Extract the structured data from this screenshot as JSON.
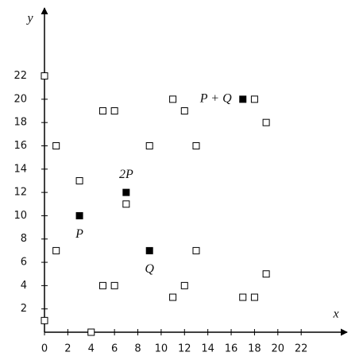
{
  "chart_data": {
    "type": "scatter",
    "x_label": "x",
    "y_label": "y",
    "xlim": [
      0,
      25.8
    ],
    "ylim": [
      0,
      27.7
    ],
    "xticks": [
      0,
      2,
      4,
      6,
      8,
      10,
      12,
      14,
      16,
      18,
      20,
      22
    ],
    "yticks": [
      2,
      4,
      6,
      8,
      10,
      12,
      14,
      16,
      18,
      20,
      22
    ],
    "series": [
      {
        "color": "#ffffff",
        "filled": false,
        "x": [
          0,
          0,
          1,
          1,
          3,
          4,
          5,
          5,
          6,
          6,
          7,
          9,
          11,
          11,
          12,
          12,
          13,
          13,
          17,
          18,
          18,
          19,
          19
        ],
        "values": [
          1,
          22,
          7,
          16,
          13,
          0,
          4,
          19,
          4,
          19,
          11,
          16,
          3,
          20,
          4,
          19,
          7,
          16,
          3,
          3,
          20,
          5,
          18
        ]
      },
      {
        "color": "#000000",
        "filled": true,
        "x": [
          3,
          7,
          9,
          17
        ],
        "values": [
          10,
          12,
          7,
          20
        ],
        "labels": [
          "P",
          "2P",
          "Q",
          "P + Q"
        ]
      }
    ]
  }
}
